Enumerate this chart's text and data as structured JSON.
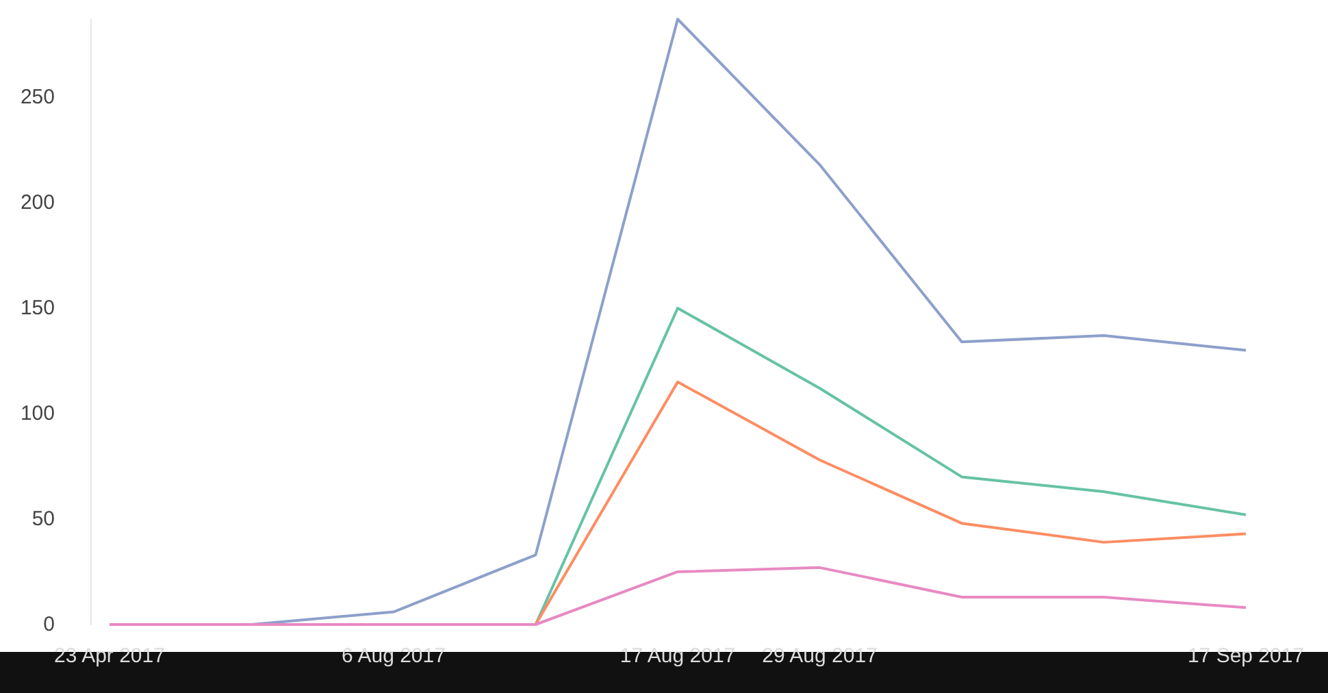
{
  "chart_data": {
    "type": "line",
    "categories": [
      "23 Apr 2017",
      null,
      "6 Aug 2017",
      null,
      "17 Aug 2017",
      "29 Aug 2017",
      null,
      null,
      "17 Sep 2017"
    ],
    "series": [
      {
        "color": "#8da0cb",
        "values": [
          0,
          0,
          6,
          33,
          287,
          218,
          134,
          137,
          130
        ]
      },
      {
        "color": "#66c2a5",
        "values": [
          null,
          null,
          null,
          0,
          150,
          112,
          70,
          63,
          52
        ]
      },
      {
        "color": "#fc8d62",
        "values": [
          null,
          null,
          null,
          0,
          115,
          78,
          48,
          39,
          43
        ]
      },
      {
        "color": "#e78ac3",
        "values": [
          0,
          0,
          0,
          0,
          25,
          27,
          13,
          13,
          8
        ]
      }
    ],
    "ylim": [
      0,
      287
    ],
    "yticks": [
      0,
      50,
      100,
      150,
      200,
      250
    ],
    "grid": false,
    "marker": "none",
    "line_style": "solid"
  }
}
